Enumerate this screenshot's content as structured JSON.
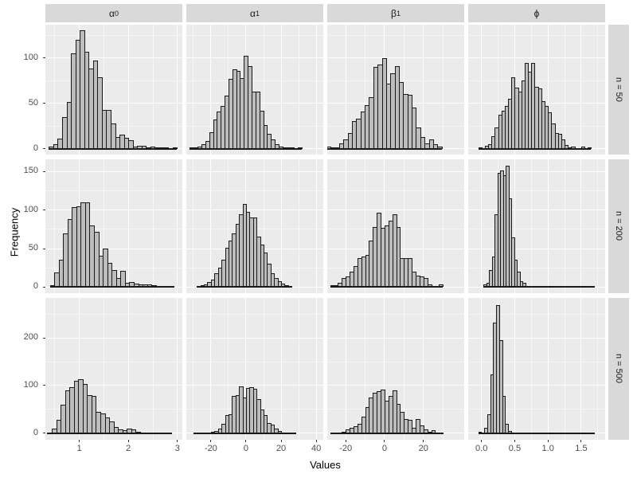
{
  "chart_data": {
    "type": "histogram",
    "title": "",
    "xlabel": "Values",
    "ylabel": "Frequency",
    "layout": "facet grid: 4 parameter columns × 3 sample-size rows, grey ggplot theme, grid on, no legend",
    "colors": {
      "panel_bg": "#EBEBEB",
      "strip_bg": "#D9D9D9",
      "bar_fill": "#BDBDBD",
      "bar_border": "#1A1A1A",
      "grid_major": "#FFFFFF",
      "axis_text": "#4D4D4D"
    },
    "facet_cols": [
      {
        "id": "alpha0",
        "label_base": "α",
        "label_sub": "0",
        "xlim": [
          0.31,
          3.1
        ],
        "tick_values": [
          1,
          2,
          3
        ],
        "tick_labels": [
          "1",
          "2",
          "3"
        ],
        "minor_ticks": [
          0.5,
          1.5,
          2.5
        ]
      },
      {
        "id": "alpha1",
        "label_base": "α",
        "label_sub": "1",
        "xlim": [
          -34,
          44
        ],
        "tick_values": [
          -20,
          0,
          20,
          40
        ],
        "tick_labels": [
          "-20",
          "0",
          "20",
          "40"
        ],
        "minor_ticks": [
          -30,
          -10,
          10,
          30
        ]
      },
      {
        "id": "beta1",
        "label_base": "β",
        "label_sub": "1",
        "xlim": [
          -29.5,
          41
        ],
        "tick_values": [
          -20,
          0,
          20
        ],
        "tick_labels": [
          "-20",
          "0",
          "20"
        ],
        "minor_ticks": [
          -10,
          10,
          30
        ]
      },
      {
        "id": "phi",
        "label_base": "ϕ",
        "label_sub": "",
        "xlim": [
          -0.2,
          1.86
        ],
        "tick_values": [
          0,
          0.5,
          1,
          1.5
        ],
        "tick_labels": [
          "0.0",
          "0.5",
          "1.0",
          "1.5"
        ],
        "minor_ticks": [
          0.25,
          0.75,
          1.25,
          1.75
        ]
      }
    ],
    "facet_rows": [
      {
        "id": "n50",
        "label": "n = 50",
        "ylim": [
          -6.5,
          136.5
        ],
        "tick_values": [
          0,
          50,
          100
        ],
        "tick_labels": [
          "0",
          "50",
          "100"
        ],
        "minor_ticks": [
          25,
          75,
          125
        ]
      },
      {
        "id": "n200",
        "label": "n = 200",
        "ylim": [
          -8,
          166
        ],
        "tick_values": [
          0,
          50,
          100,
          150
        ],
        "tick_labels": [
          "0",
          "50",
          "100",
          "150"
        ],
        "minor_ticks": [
          25,
          75,
          125
        ]
      },
      {
        "id": "n500",
        "label": "n = 500",
        "ylim": [
          -13.5,
          283.5
        ],
        "tick_values": [
          0,
          100,
          200
        ],
        "tick_labels": [
          "0",
          "100",
          "200"
        ],
        "minor_ticks": [
          50,
          150,
          250
        ]
      }
    ],
    "panels": [
      {
        "col": "alpha0",
        "row": "n50",
        "bin_start": 0.38,
        "bin_width": 0.09,
        "counts": [
          2,
          5,
          11,
          35,
          51,
          105,
          120,
          130,
          107,
          88,
          97,
          79,
          43,
          43,
          28,
          13,
          15,
          12,
          9,
          2,
          3,
          3,
          1,
          2,
          1,
          1,
          1,
          0,
          1
        ]
      },
      {
        "col": "alpha1",
        "row": "n50",
        "bin_start": -32,
        "bin_width": 2.2,
        "counts": [
          1,
          1,
          2,
          5,
          8,
          18,
          32,
          41,
          47,
          58,
          77,
          87,
          86,
          78,
          102,
          91,
          63,
          63,
          42,
          26,
          16,
          10,
          5,
          2,
          1,
          1,
          1,
          0,
          1
        ]
      },
      {
        "col": "beta1",
        "row": "n50",
        "bin_start": -30,
        "bin_width": 2.2,
        "counts": [
          2,
          1,
          1,
          6,
          10,
          17,
          30,
          33,
          41,
          48,
          57,
          90,
          93,
          100,
          72,
          83,
          91,
          73,
          60,
          59,
          45,
          23,
          13,
          6,
          10,
          5,
          2
        ]
      },
      {
        "col": "phi",
        "row": "n50",
        "bin_start": -0.05,
        "bin_width": 0.05,
        "counts": [
          1,
          0,
          3,
          5,
          14,
          23,
          37,
          42,
          47,
          55,
          79,
          67,
          63,
          75,
          94,
          85,
          94,
          68,
          66,
          52,
          47,
          40,
          28,
          17,
          16,
          10,
          4,
          1,
          2,
          0,
          0,
          2,
          0,
          1
        ]
      },
      {
        "col": "alpha0",
        "row": "n200",
        "bin_start": 0.4,
        "bin_width": 0.09,
        "counts": [
          2,
          19,
          35,
          70,
          88,
          104,
          105,
          110,
          110,
          80,
          72,
          41,
          50,
          31,
          22,
          12,
          21,
          5,
          7,
          4,
          3,
          3,
          3,
          2,
          1,
          1,
          0,
          1
        ]
      },
      {
        "col": "alpha1",
        "row": "n200",
        "bin_start": -28,
        "bin_width": 2.0,
        "counts": [
          1,
          2,
          3,
          6,
          10,
          18,
          25,
          36,
          51,
          60,
          70,
          82,
          95,
          108,
          98,
          90,
          90,
          66,
          55,
          45,
          30,
          18,
          12,
          8,
          4,
          2,
          1
        ]
      },
      {
        "col": "beta1",
        "row": "n200",
        "bin_start": -28,
        "bin_width": 2.0,
        "counts": [
          2,
          2,
          5,
          12,
          14,
          20,
          27,
          38,
          40,
          42,
          60,
          78,
          97,
          77,
          80,
          86,
          95,
          78,
          38,
          38,
          38,
          20,
          15,
          14,
          12,
          3,
          0,
          0,
          3
        ]
      },
      {
        "col": "phi",
        "row": "n200",
        "bin_start": 0.03,
        "bin_width": 0.042,
        "counts": [
          3,
          5,
          22,
          40,
          95,
          148,
          152,
          145,
          158,
          115,
          65,
          35,
          20,
          8,
          5,
          0,
          0,
          0,
          0,
          0,
          0,
          0,
          0,
          0,
          0,
          0,
          0,
          0,
          0,
          0,
          0,
          0,
          0,
          0,
          0,
          0,
          0,
          0,
          0,
          0
        ]
      },
      {
        "col": "alpha0",
        "row": "n500",
        "bin_start": 0.35,
        "bin_width": 0.09,
        "counts": [
          2,
          10,
          28,
          60,
          90,
          97,
          110,
          113,
          103,
          80,
          78,
          45,
          42,
          33,
          25,
          13,
          8,
          6,
          10,
          8,
          4,
          2,
          2,
          1,
          1,
          0,
          1,
          1
        ]
      },
      {
        "col": "alpha1",
        "row": "n500",
        "bin_start": -30,
        "bin_width": 2.0,
        "counts": [
          1,
          1,
          0,
          1,
          2,
          3,
          5,
          10,
          20,
          38,
          40,
          78,
          80,
          98,
          75,
          95,
          96,
          93,
          72,
          50,
          38,
          22,
          18,
          10,
          5,
          2,
          1,
          0,
          1
        ]
      },
      {
        "col": "beta1",
        "row": "n500",
        "bin_start": -28,
        "bin_width": 2.0,
        "counts": [
          1,
          1,
          2,
          4,
          8,
          12,
          15,
          20,
          35,
          55,
          75,
          85,
          88,
          92,
          68,
          78,
          90,
          62,
          45,
          30,
          28,
          12,
          30,
          17,
          8,
          4,
          6,
          2,
          1
        ]
      },
      {
        "col": "phi",
        "row": "n500",
        "bin_start": -0.05,
        "bin_width": 0.045,
        "counts": [
          3,
          0,
          12,
          40,
          123,
          232,
          268,
          195,
          78,
          20,
          5,
          2,
          1,
          0,
          0,
          0,
          0,
          0,
          0,
          0,
          0,
          0,
          0,
          0,
          0,
          0,
          0,
          0,
          0,
          0,
          0,
          0,
          0,
          0,
          0,
          0,
          0,
          0,
          0
        ]
      }
    ]
  }
}
